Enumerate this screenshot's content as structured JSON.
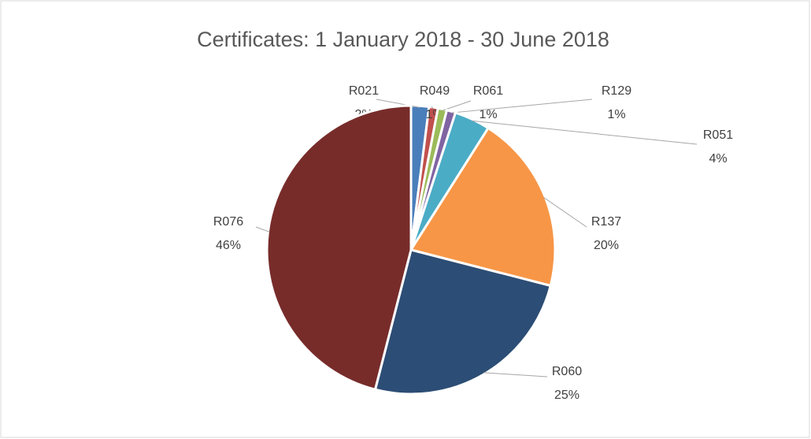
{
  "chart_data": {
    "type": "pie",
    "title": "Certificates: 1 January 2018 - 30 June 2018",
    "categories": [
      "R021",
      "R049",
      "R061",
      "R129",
      "R051",
      "R137",
      "R060",
      "R076"
    ],
    "values": [
      2,
      1,
      1,
      1,
      4,
      20,
      25,
      46
    ],
    "value_labels": [
      "2%",
      "1%",
      "1%",
      "1%",
      "4%",
      "20%",
      "25%",
      "46%"
    ],
    "colors": [
      "#4a7ebb",
      "#c0504d",
      "#9bbb59",
      "#8064a2",
      "#4bacc6",
      "#f79646",
      "#2c4d75",
      "#772c2a"
    ]
  }
}
